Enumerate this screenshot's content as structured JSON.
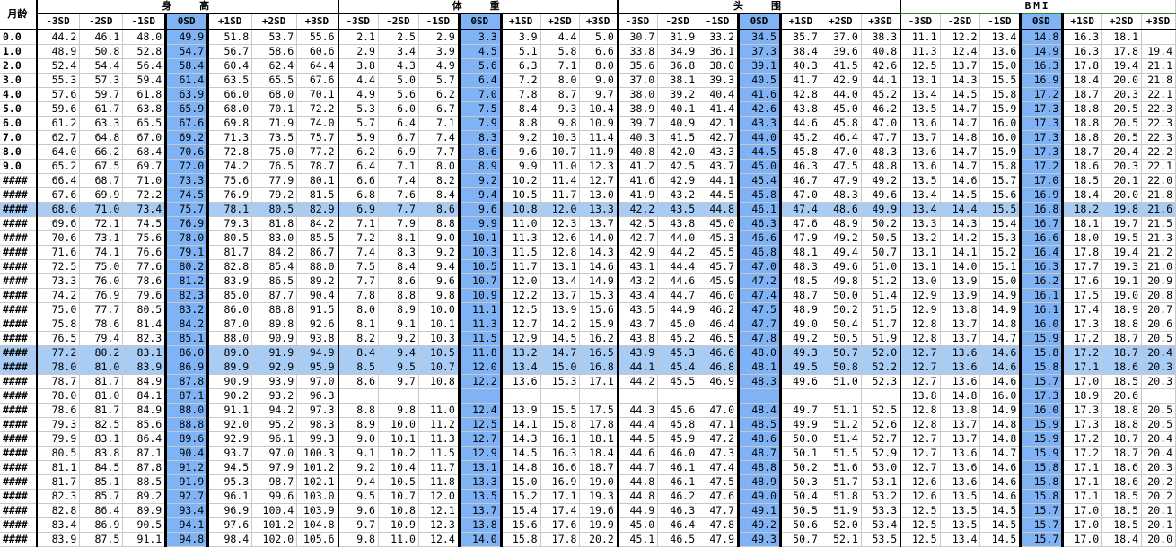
{
  "corner_label": "月龄",
  "groups": [
    {
      "name": "身　　高",
      "columns": [
        "-3SD",
        "-2SD",
        "-1SD",
        "0SD",
        "+1SD",
        "+2SD",
        "+3SD"
      ]
    },
    {
      "name": "体　　重",
      "columns": [
        "-3SD",
        "-2SD",
        "-1SD",
        "0SD",
        "+1SD",
        "+2SD",
        "+3SD"
      ]
    },
    {
      "name": "头　　围",
      "columns": [
        "-3SD",
        "-2SD",
        "-1SD",
        "0SD",
        "+1SD",
        "+2SD",
        "+3SD"
      ]
    },
    {
      "name": "BMI",
      "columns": [
        "-3SD",
        "-2SD",
        "-1SD",
        "0SD",
        "+1SD",
        "+2SD",
        "+3SD"
      ]
    }
  ],
  "highlight_rows": [
    12,
    22,
    23
  ],
  "rows": [
    {
      "age": "0.0",
      "v": [
        "44.2",
        "46.1",
        "48.0",
        "49.9",
        "51.8",
        "53.7",
        "55.6",
        "2.1",
        "2.5",
        "2.9",
        "3.3",
        "3.9",
        "4.4",
        "5.0",
        "30.7",
        "31.9",
        "33.2",
        "34.5",
        "35.7",
        "37.0",
        "38.3",
        "11.1",
        "12.2",
        "13.4",
        "14.8",
        "16.3",
        "18.1",
        ""
      ]
    },
    {
      "age": "1.0",
      "v": [
        "48.9",
        "50.8",
        "52.8",
        "54.7",
        "56.7",
        "58.6",
        "60.6",
        "2.9",
        "3.4",
        "3.9",
        "4.5",
        "5.1",
        "5.8",
        "6.6",
        "33.8",
        "34.9",
        "36.1",
        "37.3",
        "38.4",
        "39.6",
        "40.8",
        "11.3",
        "12.4",
        "13.6",
        "14.9",
        "16.3",
        "17.8",
        "19.4"
      ]
    },
    {
      "age": "2.0",
      "v": [
        "52.4",
        "54.4",
        "56.4",
        "58.4",
        "60.4",
        "62.4",
        "64.4",
        "3.8",
        "4.3",
        "4.9",
        "5.6",
        "6.3",
        "7.1",
        "8.0",
        "35.6",
        "36.8",
        "38.0",
        "39.1",
        "40.3",
        "41.5",
        "42.6",
        "12.5",
        "13.7",
        "15.0",
        "16.3",
        "17.8",
        "19.4",
        "21.1"
      ]
    },
    {
      "age": "3.0",
      "v": [
        "55.3",
        "57.3",
        "59.4",
        "61.4",
        "63.5",
        "65.5",
        "67.6",
        "4.4",
        "5.0",
        "5.7",
        "6.4",
        "7.2",
        "8.0",
        "9.0",
        "37.0",
        "38.1",
        "39.3",
        "40.5",
        "41.7",
        "42.9",
        "44.1",
        "13.1",
        "14.3",
        "15.5",
        "16.9",
        "18.4",
        "20.0",
        "21.8"
      ]
    },
    {
      "age": "4.0",
      "v": [
        "57.6",
        "59.7",
        "61.8",
        "63.9",
        "66.0",
        "68.0",
        "70.1",
        "4.9",
        "5.6",
        "6.2",
        "7.0",
        "7.8",
        "8.7",
        "9.7",
        "38.0",
        "39.2",
        "40.4",
        "41.6",
        "42.8",
        "44.0",
        "45.2",
        "13.4",
        "14.5",
        "15.8",
        "17.2",
        "18.7",
        "20.3",
        "22.1"
      ]
    },
    {
      "age": "5.0",
      "v": [
        "59.6",
        "61.7",
        "63.8",
        "65.9",
        "68.0",
        "70.1",
        "72.2",
        "5.3",
        "6.0",
        "6.7",
        "7.5",
        "8.4",
        "9.3",
        "10.4",
        "38.9",
        "40.1",
        "41.4",
        "42.6",
        "43.8",
        "45.0",
        "46.2",
        "13.5",
        "14.7",
        "15.9",
        "17.3",
        "18.8",
        "20.5",
        "22.3"
      ]
    },
    {
      "age": "6.0",
      "v": [
        "61.2",
        "63.3",
        "65.5",
        "67.6",
        "69.8",
        "71.9",
        "74.0",
        "5.7",
        "6.4",
        "7.1",
        "7.9",
        "8.8",
        "9.8",
        "10.9",
        "39.7",
        "40.9",
        "42.1",
        "43.3",
        "44.6",
        "45.8",
        "47.0",
        "13.6",
        "14.7",
        "16.0",
        "17.3",
        "18.8",
        "20.5",
        "22.3"
      ]
    },
    {
      "age": "7.0",
      "v": [
        "62.7",
        "64.8",
        "67.0",
        "69.2",
        "71.3",
        "73.5",
        "75.7",
        "5.9",
        "6.7",
        "7.4",
        "8.3",
        "9.2",
        "10.3",
        "11.4",
        "40.3",
        "41.5",
        "42.7",
        "44.0",
        "45.2",
        "46.4",
        "47.7",
        "13.7",
        "14.8",
        "16.0",
        "17.3",
        "18.8",
        "20.5",
        "22.3"
      ]
    },
    {
      "age": "8.0",
      "v": [
        "64.0",
        "66.2",
        "68.4",
        "70.6",
        "72.8",
        "75.0",
        "77.2",
        "6.2",
        "6.9",
        "7.7",
        "8.6",
        "9.6",
        "10.7",
        "11.9",
        "40.8",
        "42.0",
        "43.3",
        "44.5",
        "45.8",
        "47.0",
        "48.3",
        "13.6",
        "14.7",
        "15.9",
        "17.3",
        "18.7",
        "20.4",
        "22.2"
      ]
    },
    {
      "age": "9.0",
      "v": [
        "65.2",
        "67.5",
        "69.7",
        "72.0",
        "74.2",
        "76.5",
        "78.7",
        "6.4",
        "7.1",
        "8.0",
        "8.9",
        "9.9",
        "11.0",
        "12.3",
        "41.2",
        "42.5",
        "43.7",
        "45.0",
        "46.3",
        "47.5",
        "48.8",
        "13.6",
        "14.7",
        "15.8",
        "17.2",
        "18.6",
        "20.3",
        "22.1"
      ]
    },
    {
      "age": "####",
      "v": [
        "66.4",
        "68.7",
        "71.0",
        "73.3",
        "75.6",
        "77.9",
        "80.1",
        "6.6",
        "7.4",
        "8.2",
        "9.2",
        "10.2",
        "11.4",
        "12.7",
        "41.6",
        "42.9",
        "44.1",
        "45.4",
        "46.7",
        "47.9",
        "49.2",
        "13.5",
        "14.6",
        "15.7",
        "17.0",
        "18.5",
        "20.1",
        "22.0"
      ]
    },
    {
      "age": "####",
      "v": [
        "67.6",
        "69.9",
        "72.2",
        "74.5",
        "76.9",
        "79.2",
        "81.5",
        "6.8",
        "7.6",
        "8.4",
        "9.4",
        "10.5",
        "11.7",
        "13.0",
        "41.9",
        "43.2",
        "44.5",
        "45.8",
        "47.0",
        "48.3",
        "49.6",
        "13.4",
        "14.5",
        "15.6",
        "16.9",
        "18.4",
        "20.0",
        "21.8"
      ]
    },
    {
      "age": "####",
      "v": [
        "68.6",
        "71.0",
        "73.4",
        "75.7",
        "78.1",
        "80.5",
        "82.9",
        "6.9",
        "7.7",
        "8.6",
        "9.6",
        "10.8",
        "12.0",
        "13.3",
        "42.2",
        "43.5",
        "44.8",
        "46.1",
        "47.4",
        "48.6",
        "49.9",
        "13.4",
        "14.4",
        "15.5",
        "16.8",
        "18.2",
        "19.8",
        "21.6"
      ]
    },
    {
      "age": "####",
      "v": [
        "69.6",
        "72.1",
        "74.5",
        "76.9",
        "79.3",
        "81.8",
        "84.2",
        "7.1",
        "7.9",
        "8.8",
        "9.9",
        "11.0",
        "12.3",
        "13.7",
        "42.5",
        "43.8",
        "45.0",
        "46.3",
        "47.6",
        "48.9",
        "50.2",
        "13.3",
        "14.3",
        "15.4",
        "16.7",
        "18.1",
        "19.7",
        "21.5"
      ]
    },
    {
      "age": "####",
      "v": [
        "70.6",
        "73.1",
        "75.6",
        "78.0",
        "80.5",
        "83.0",
        "85.5",
        "7.2",
        "8.1",
        "9.0",
        "10.1",
        "11.3",
        "12.6",
        "14.0",
        "42.7",
        "44.0",
        "45.3",
        "46.6",
        "47.9",
        "49.2",
        "50.5",
        "13.2",
        "14.2",
        "15.3",
        "16.6",
        "18.0",
        "19.5",
        "21.3"
      ]
    },
    {
      "age": "####",
      "v": [
        "71.6",
        "74.1",
        "76.6",
        "79.1",
        "81.7",
        "84.2",
        "86.7",
        "7.4",
        "8.3",
        "9.2",
        "10.3",
        "11.5",
        "12.8",
        "14.3",
        "42.9",
        "44.2",
        "45.5",
        "46.8",
        "48.1",
        "49.4",
        "50.7",
        "13.1",
        "14.1",
        "15.2",
        "16.4",
        "17.8",
        "19.4",
        "21.2"
      ]
    },
    {
      "age": "####",
      "v": [
        "72.5",
        "75.0",
        "77.6",
        "80.2",
        "82.8",
        "85.4",
        "88.0",
        "7.5",
        "8.4",
        "9.4",
        "10.5",
        "11.7",
        "13.1",
        "14.6",
        "43.1",
        "44.4",
        "45.7",
        "47.0",
        "48.3",
        "49.6",
        "51.0",
        "13.1",
        "14.0",
        "15.1",
        "16.3",
        "17.7",
        "19.3",
        "21.0"
      ]
    },
    {
      "age": "####",
      "v": [
        "73.3",
        "76.0",
        "78.6",
        "81.2",
        "83.9",
        "86.5",
        "89.2",
        "7.7",
        "8.6",
        "9.6",
        "10.7",
        "12.0",
        "13.4",
        "14.9",
        "43.2",
        "44.6",
        "45.9",
        "47.2",
        "48.5",
        "49.8",
        "51.2",
        "13.0",
        "13.9",
        "15.0",
        "16.2",
        "17.6",
        "19.1",
        "20.9"
      ]
    },
    {
      "age": "####",
      "v": [
        "74.2",
        "76.9",
        "79.6",
        "82.3",
        "85.0",
        "87.7",
        "90.4",
        "7.8",
        "8.8",
        "9.8",
        "10.9",
        "12.2",
        "13.7",
        "15.3",
        "43.4",
        "44.7",
        "46.0",
        "47.4",
        "48.7",
        "50.0",
        "51.4",
        "12.9",
        "13.9",
        "14.9",
        "16.1",
        "17.5",
        "19.0",
        "20.8"
      ]
    },
    {
      "age": "####",
      "v": [
        "75.0",
        "77.7",
        "80.5",
        "83.2",
        "86.0",
        "88.8",
        "91.5",
        "8.0",
        "8.9",
        "10.0",
        "11.1",
        "12.5",
        "13.9",
        "15.6",
        "43.5",
        "44.9",
        "46.2",
        "47.5",
        "48.9",
        "50.2",
        "51.5",
        "12.9",
        "13.8",
        "14.9",
        "16.1",
        "17.4",
        "18.9",
        "20.7"
      ]
    },
    {
      "age": "####",
      "v": [
        "75.8",
        "78.6",
        "81.4",
        "84.2",
        "87.0",
        "89.8",
        "92.6",
        "8.1",
        "9.1",
        "10.1",
        "11.3",
        "12.7",
        "14.2",
        "15.9",
        "43.7",
        "45.0",
        "46.4",
        "47.7",
        "49.0",
        "50.4",
        "51.7",
        "12.8",
        "13.7",
        "14.8",
        "16.0",
        "17.3",
        "18.8",
        "20.6"
      ]
    },
    {
      "age": "####",
      "v": [
        "76.5",
        "79.4",
        "82.3",
        "85.1",
        "88.0",
        "90.9",
        "93.8",
        "8.2",
        "9.2",
        "10.3",
        "11.5",
        "12.9",
        "14.5",
        "16.2",
        "43.8",
        "45.2",
        "46.5",
        "47.8",
        "49.2",
        "50.5",
        "51.9",
        "12.8",
        "13.7",
        "14.7",
        "15.9",
        "17.2",
        "18.7",
        "20.5"
      ]
    },
    {
      "age": "####",
      "v": [
        "77.2",
        "80.2",
        "83.1",
        "86.0",
        "89.0",
        "91.9",
        "94.9",
        "8.4",
        "9.4",
        "10.5",
        "11.8",
        "13.2",
        "14.7",
        "16.5",
        "43.9",
        "45.3",
        "46.6",
        "48.0",
        "49.3",
        "50.7",
        "52.0",
        "12.7",
        "13.6",
        "14.6",
        "15.8",
        "17.2",
        "18.7",
        "20.4"
      ]
    },
    {
      "age": "####",
      "v": [
        "78.0",
        "81.0",
        "83.9",
        "86.9",
        "89.9",
        "92.9",
        "95.9",
        "8.5",
        "9.5",
        "10.7",
        "12.0",
        "13.4",
        "15.0",
        "16.8",
        "44.1",
        "45.4",
        "46.8",
        "48.1",
        "49.5",
        "50.8",
        "52.2",
        "12.7",
        "13.6",
        "14.6",
        "15.8",
        "17.1",
        "18.6",
        "20.3"
      ]
    },
    {
      "age": "####",
      "v": [
        "78.7",
        "81.7",
        "84.9",
        "87.8",
        "90.9",
        "93.9",
        "97.0",
        "8.6",
        "9.7",
        "10.8",
        "12.2",
        "13.6",
        "15.3",
        "17.1",
        "44.2",
        "45.5",
        "46.9",
        "48.3",
        "49.6",
        "51.0",
        "52.3",
        "12.7",
        "13.6",
        "14.6",
        "15.7",
        "17.0",
        "18.5",
        "20.3"
      ]
    },
    {
      "age": "####",
      "v": [
        "78.0",
        "81.0",
        "84.1",
        "87.1",
        "90.2",
        "93.2",
        "96.3",
        "",
        "",
        "",
        "",
        "",
        "",
        "",
        "",
        "",
        "",
        "",
        "",
        "",
        "",
        "13.8",
        "14.8",
        "16.0",
        "17.3",
        "18.9",
        "20.6",
        ""
      ]
    },
    {
      "age": "####",
      "v": [
        "78.6",
        "81.7",
        "84.9",
        "88.0",
        "91.1",
        "94.2",
        "97.3",
        "8.8",
        "9.8",
        "11.0",
        "12.4",
        "13.9",
        "15.5",
        "17.5",
        "44.3",
        "45.6",
        "47.0",
        "48.4",
        "49.7",
        "51.1",
        "52.5",
        "12.8",
        "13.8",
        "14.9",
        "16.0",
        "17.3",
        "18.8",
        "20.5"
      ]
    },
    {
      "age": "####",
      "v": [
        "79.3",
        "82.5",
        "85.6",
        "88.8",
        "92.0",
        "95.2",
        "98.3",
        "8.9",
        "10.0",
        "11.2",
        "12.5",
        "14.1",
        "15.8",
        "17.8",
        "44.4",
        "45.8",
        "47.1",
        "48.5",
        "49.9",
        "51.2",
        "52.6",
        "12.8",
        "13.7",
        "14.8",
        "15.9",
        "17.3",
        "18.8",
        "20.5"
      ]
    },
    {
      "age": "####",
      "v": [
        "79.9",
        "83.1",
        "86.4",
        "89.6",
        "92.9",
        "96.1",
        "99.3",
        "9.0",
        "10.1",
        "11.3",
        "12.7",
        "14.3",
        "16.1",
        "18.1",
        "44.5",
        "45.9",
        "47.2",
        "48.6",
        "50.0",
        "51.4",
        "52.7",
        "12.7",
        "13.7",
        "14.8",
        "15.9",
        "17.2",
        "18.7",
        "20.4"
      ]
    },
    {
      "age": "####",
      "v": [
        "80.5",
        "83.8",
        "87.1",
        "90.4",
        "93.7",
        "97.0",
        "100.3",
        "9.1",
        "10.2",
        "11.5",
        "12.9",
        "14.5",
        "16.3",
        "18.4",
        "44.6",
        "46.0",
        "47.3",
        "48.7",
        "50.1",
        "51.5",
        "52.9",
        "12.7",
        "13.6",
        "14.7",
        "15.9",
        "17.2",
        "18.7",
        "20.4"
      ]
    },
    {
      "age": "####",
      "v": [
        "81.1",
        "84.5",
        "87.8",
        "91.2",
        "94.5",
        "97.9",
        "101.2",
        "9.2",
        "10.4",
        "11.7",
        "13.1",
        "14.8",
        "16.6",
        "18.7",
        "44.7",
        "46.1",
        "47.4",
        "48.8",
        "50.2",
        "51.6",
        "53.0",
        "12.7",
        "13.6",
        "14.6",
        "15.8",
        "17.1",
        "18.6",
        "20.3"
      ]
    },
    {
      "age": "####",
      "v": [
        "81.7",
        "85.1",
        "88.5",
        "91.9",
        "95.3",
        "98.7",
        "102.1",
        "9.4",
        "10.5",
        "11.8",
        "13.3",
        "15.0",
        "16.9",
        "19.0",
        "44.8",
        "46.1",
        "47.5",
        "48.9",
        "50.3",
        "51.7",
        "53.1",
        "12.6",
        "13.6",
        "14.6",
        "15.8",
        "17.1",
        "18.6",
        "20.2"
      ]
    },
    {
      "age": "####",
      "v": [
        "82.3",
        "85.7",
        "89.2",
        "92.7",
        "96.1",
        "99.6",
        "103.0",
        "9.5",
        "10.7",
        "12.0",
        "13.5",
        "15.2",
        "17.1",
        "19.3",
        "44.8",
        "46.2",
        "47.6",
        "49.0",
        "50.4",
        "51.8",
        "53.2",
        "12.6",
        "13.5",
        "14.6",
        "15.8",
        "17.1",
        "18.5",
        "20.2"
      ]
    },
    {
      "age": "####",
      "v": [
        "82.8",
        "86.4",
        "89.9",
        "93.4",
        "96.9",
        "100.4",
        "103.9",
        "9.6",
        "10.8",
        "12.1",
        "13.7",
        "15.4",
        "17.4",
        "19.6",
        "44.9",
        "46.3",
        "47.7",
        "49.1",
        "50.5",
        "51.9",
        "53.3",
        "12.5",
        "13.5",
        "14.5",
        "15.7",
        "17.0",
        "18.5",
        "20.1"
      ]
    },
    {
      "age": "####",
      "v": [
        "83.4",
        "86.9",
        "90.5",
        "94.1",
        "97.6",
        "101.2",
        "104.8",
        "9.7",
        "10.9",
        "12.3",
        "13.8",
        "15.6",
        "17.6",
        "19.9",
        "45.0",
        "46.4",
        "47.8",
        "49.2",
        "50.6",
        "52.0",
        "53.4",
        "12.5",
        "13.5",
        "14.5",
        "15.7",
        "17.0",
        "18.5",
        "20.1"
      ]
    },
    {
      "age": "####",
      "v": [
        "83.9",
        "87.5",
        "91.1",
        "94.8",
        "98.4",
        "102.0",
        "105.6",
        "9.8",
        "11.0",
        "12.4",
        "14.0",
        "15.8",
        "17.8",
        "20.2",
        "45.1",
        "46.5",
        "47.9",
        "49.3",
        "50.7",
        "52.1",
        "53.5",
        "12.5",
        "13.4",
        "14.5",
        "15.7",
        "17.0",
        "18.4",
        "20.0"
      ]
    }
  ]
}
